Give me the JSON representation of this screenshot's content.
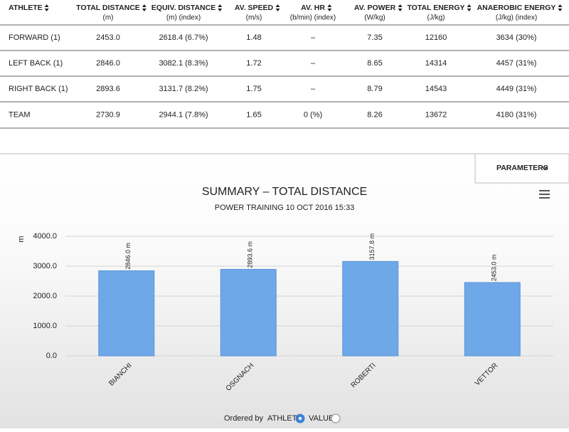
{
  "table": {
    "headers": [
      {
        "name": "ATHLETE"
      },
      {
        "name": "TOTAL DISTANCE",
        "unit": "(m)"
      },
      {
        "name": "EQUIV. DISTANCE",
        "unit": "(m) (index)"
      },
      {
        "name": "AV. SPEED",
        "unit": "(m/s)"
      },
      {
        "name": "AV. HR",
        "unit": "(b/min) (index)"
      },
      {
        "name": "AV. POWER",
        "unit": "(W/kg)"
      },
      {
        "name": "TOTAL ENERGY",
        "unit": "(J/kg)"
      },
      {
        "name": "ANAEROBIC ENERGY",
        "unit": "(J/kg) (index)"
      }
    ],
    "rows": [
      [
        "FORWARD (1)",
        "2453.0",
        "2618.4 (6.7%)",
        "1.48",
        "–",
        "7.35",
        "12160",
        "3634 (30%)"
      ],
      [
        "LEFT BACK (1)",
        "2846.0",
        "3082.1 (8.3%)",
        "1.72",
        "–",
        "8.65",
        "14314",
        "4457 (31%)"
      ],
      [
        "RIGHT BACK (1)",
        "2893.6",
        "3131.7 (8.2%)",
        "1.75",
        "–",
        "8.79",
        "14543",
        "4449 (31%)"
      ],
      [
        "TEAM",
        "2730.9",
        "2944.1 (7.8%)",
        "1.65",
        "0 (%)",
        "8.26",
        "13672",
        "4180 (31%)"
      ]
    ]
  },
  "parameters_button": "PARAMETERS",
  "chart_data": {
    "type": "bar",
    "title": "SUMMARY – TOTAL DISTANCE",
    "subtitle": "POWER TRAINING 10 OCT 2016 15:33",
    "y_label": "m",
    "categories": [
      "BIANCHI",
      "OSGNACH",
      "ROBERTI",
      "VETTOR"
    ],
    "values": [
      2846.0,
      2893.6,
      3157.8,
      2453.0
    ],
    "value_labels": [
      "2846.0 m",
      "2893.6 m",
      "3157.8 m",
      "2453.0 m"
    ],
    "color": "#6fa8e8",
    "ylim": [
      0,
      4000
    ],
    "yticks": [
      {
        "value": 0,
        "label": "0.0"
      },
      {
        "value": 1000,
        "label": "1000.0"
      },
      {
        "value": 2000,
        "label": "2000.0"
      },
      {
        "value": 3000,
        "label": "3000.0"
      },
      {
        "value": 4000,
        "label": "4000.0"
      }
    ],
    "grid": true
  },
  "ordering": {
    "label": "Ordered by",
    "options": [
      "ATHLETE",
      "VALUE"
    ],
    "selected": 0
  }
}
